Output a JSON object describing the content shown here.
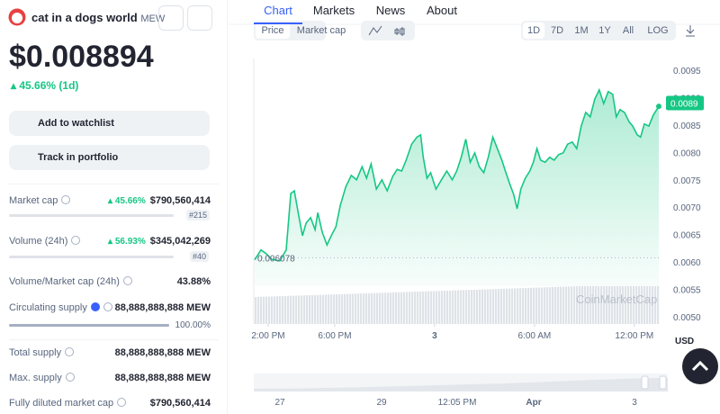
{
  "coin": {
    "name": "cat in a dogs world",
    "symbol": "MEW",
    "price": "$0.008894",
    "change": "45.66% (1d)",
    "watchlist": "Add to watchlist",
    "portfolio": "Track in portfolio"
  },
  "stats": {
    "market_cap": {
      "label": "Market cap",
      "change": "45.66%",
      "value": "$790,560,414",
      "rank": "#215"
    },
    "volume": {
      "label": "Volume (24h)",
      "change": "56.93%",
      "value": "$345,042,269",
      "rank": "#40"
    },
    "vol_mcap": {
      "label": "Volume/Market cap (24h)",
      "value": "43.88%"
    },
    "circulating": {
      "label": "Circulating supply",
      "value": "88,888,888,888 MEW",
      "percent": "100.00%"
    },
    "total": {
      "label": "Total supply",
      "value": "88,888,888,888 MEW"
    },
    "max": {
      "label": "Max. supply",
      "value": "88,888,888,888 MEW"
    },
    "fdmc": {
      "label": "Fully diluted market cap",
      "value": "$790,560,414"
    }
  },
  "tabs": [
    "Chart",
    "Markets",
    "News",
    "About"
  ],
  "toolbar": {
    "modes": [
      "Price",
      "Market cap"
    ],
    "ranges": [
      "1D",
      "7D",
      "1M",
      "1Y",
      "All",
      "LOG"
    ]
  },
  "chart_data": {
    "type": "line",
    "color": "#16c784",
    "x": [
      13.19,
      13.57,
      13.89,
      14.22,
      14.7,
      15.08,
      15.36,
      15.57,
      15.84,
      16.06,
      16.28,
      16.55,
      16.82,
      16.98,
      17.25,
      17.53,
      17.79,
      18.07,
      18.34,
      18.66,
      18.99,
      19.31,
      19.64,
      19.91,
      20.18,
      20.5,
      20.83,
      21.15,
      21.48,
      21.75,
      22.02,
      22.29,
      22.62,
      22.94,
      23.16,
      23.32,
      23.54,
      23.76,
      24.08,
      24.41,
      24.73,
      25.06,
      25.33,
      25.6,
      25.87,
      26.14,
      26.41,
      26.68,
      26.95,
      27.22,
      27.5,
      27.77,
      28.04,
      28.25,
      28.53,
      28.74,
      28.96,
      29.18,
      29.45,
      29.72,
      29.93,
      30.15,
      30.37,
      30.64,
      30.91,
      31.18,
      31.45,
      31.72,
      31.99,
      32.27,
      32.54,
      32.81,
      33.08,
      33.35,
      33.62,
      33.89,
      34.16,
      34.43,
      34.7,
      34.92,
      35.14,
      35.41,
      35.68,
      35.9,
      36.17,
      36.38,
      36.6,
      36.87,
      37.14,
      37.47
    ],
    "values": [
      0.00604,
      0.00622,
      0.00615,
      0.00605,
      0.00602,
      0.00622,
      0.00725,
      0.0073,
      0.00684,
      0.00648,
      0.00671,
      0.00681,
      0.00659,
      0.0069,
      0.00654,
      0.00631,
      0.00648,
      0.00664,
      0.00704,
      0.00737,
      0.00758,
      0.0075,
      0.00774,
      0.00753,
      0.00779,
      0.00733,
      0.0075,
      0.0073,
      0.00756,
      0.00769,
      0.00766,
      0.00786,
      0.00815,
      0.00828,
      0.00832,
      0.00791,
      0.00753,
      0.00763,
      0.00733,
      0.0075,
      0.00766,
      0.0075,
      0.00766,
      0.00791,
      0.00824,
      0.00782,
      0.00799,
      0.00774,
      0.00763,
      0.00791,
      0.00828,
      0.00807,
      0.00786,
      0.00766,
      0.00741,
      0.00724,
      0.00697,
      0.00733,
      0.00753,
      0.00766,
      0.00782,
      0.00807,
      0.00786,
      0.00782,
      0.00791,
      0.00786,
      0.00796,
      0.00799,
      0.00815,
      0.00819,
      0.00807,
      0.00848,
      0.00873,
      0.00865,
      0.00897,
      0.00914,
      0.00889,
      0.00911,
      0.00906,
      0.00865,
      0.00878,
      0.00873,
      0.00856,
      0.00848,
      0.00832,
      0.00828,
      0.00852,
      0.00848,
      0.00868,
      0.00884
    ],
    "xlim": [
      13.19,
      37.47
    ],
    "ylim": [
      0.005,
      0.0095
    ],
    "xticks": [
      {
        "value": 14,
        "label": "2:00 PM"
      },
      {
        "value": 18,
        "label": "6:00 PM"
      },
      {
        "value": 24,
        "label": "3"
      },
      {
        "value": 30,
        "label": "6:00 AM"
      },
      {
        "value": 36,
        "label": "12:00 PM"
      }
    ],
    "yticks": [
      {
        "value": 0.005,
        "label": "0.0050"
      },
      0.0055,
      {
        "value": 0.006,
        "label": "0.0060"
      },
      0.0065,
      {
        "value": 0.007,
        "label": "0.0070"
      },
      0.0075,
      {
        "value": 0.008,
        "label": "0.0080"
      },
      0.0085,
      {
        "value": 0.009,
        "label": "0.0090"
      },
      0.0095
    ],
    "start_price": 0.006078,
    "current_price": 0.0089,
    "currency": "USD",
    "watermark": "CoinMarketCap",
    "navigator_labels": [
      "27",
      "29",
      "12:05 PM",
      "Apr",
      "3"
    ]
  }
}
